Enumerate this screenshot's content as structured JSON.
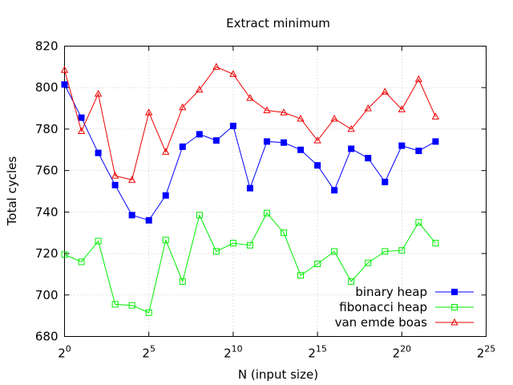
{
  "chart_data": {
    "type": "line",
    "title": "Extract minimum",
    "xlabel": "N (input size)",
    "ylabel": "Total cycles",
    "x_scale": "log2",
    "x_exponents": [
      0,
      1,
      2,
      3,
      4,
      5,
      6,
      7,
      8,
      9,
      10,
      11,
      12,
      13,
      14,
      15,
      16,
      17,
      18,
      19,
      20,
      21,
      22
    ],
    "xlim_exponents": [
      0,
      25
    ],
    "x_ticks": [
      {
        "base": "2",
        "exp": "0",
        "value": 0
      },
      {
        "base": "2",
        "exp": "5",
        "value": 5
      },
      {
        "base": "2",
        "exp": "10",
        "value": 10
      },
      {
        "base": "2",
        "exp": "15",
        "value": 15
      },
      {
        "base": "2",
        "exp": "20",
        "value": 20
      },
      {
        "base": "2",
        "exp": "25",
        "value": 25
      }
    ],
    "ylim": [
      680,
      820
    ],
    "y_ticks": [
      680,
      700,
      720,
      740,
      760,
      780,
      800,
      820
    ],
    "grid": true,
    "legend_position": "bottom-right",
    "series": [
      {
        "name": "binary heap",
        "color": "#0000ff",
        "marker": "filled-square",
        "values": [
          801.5,
          785.5,
          768.5,
          753,
          738.5,
          736,
          748,
          771.5,
          777.5,
          774.5,
          781.5,
          751.5,
          774,
          773.5,
          770,
          762.5,
          750.5,
          770.5,
          766,
          754.5,
          772,
          769.5,
          774
        ]
      },
      {
        "name": "fibonacci heap",
        "color": "#00ee00",
        "marker": "open-square",
        "values": [
          719.5,
          716,
          726,
          695.5,
          695,
          691.5,
          726.5,
          706.5,
          738.5,
          721,
          725,
          724,
          739.5,
          730,
          709.5,
          715,
          721,
          706.5,
          715.5,
          721,
          721.5,
          735,
          725
        ]
      },
      {
        "name": "van emde boas",
        "color": "#ee0000",
        "marker": "open-triangle",
        "values": [
          808.5,
          779,
          797,
          757.5,
          755.5,
          788,
          769,
          790.5,
          799,
          810,
          806.5,
          795,
          789,
          788,
          785,
          774.5,
          785,
          780,
          790,
          798,
          789.5,
          804,
          786
        ]
      }
    ]
  }
}
